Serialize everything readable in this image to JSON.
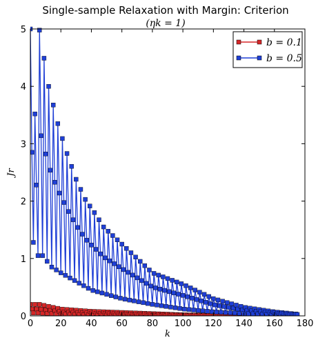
{
  "chart_data": {
    "type": "line",
    "title": "Single-sample Relaxation with Margin: Criterion",
    "subtitle": "(ηk = 1)",
    "xlabel": "k",
    "ylabel": "Jr",
    "xlim": [
      0,
      180
    ],
    "ylim": [
      0,
      5
    ],
    "xticks": [
      0,
      20,
      40,
      60,
      80,
      100,
      120,
      140,
      160,
      180
    ],
    "yticks": [
      0,
      1,
      2,
      3,
      4,
      5
    ],
    "grid": false,
    "legend_position": "top-right",
    "series": [
      {
        "name": "b = 0.1",
        "color": "#d62728",
        "marker": "square",
        "n_points": 176,
        "pattern": "small oscillation with period 3 decaying to 0",
        "peaks": [
          [
            3,
            0.2
          ],
          [
            6,
            0.2
          ],
          [
            20,
            0.12
          ],
          [
            40,
            0.08
          ],
          [
            60,
            0.06
          ],
          [
            80,
            0.04
          ],
          [
            100,
            0.02
          ],
          [
            120,
            0.01
          ],
          [
            175,
            0.0
          ]
        ]
      },
      {
        "name": "b = 0.5",
        "color": "#1f3fd6",
        "marker": "square",
        "n_points": 176,
        "pattern": "oscillation with period 3: peak, trough, mid; decaying toward 0",
        "peaks": [
          [
            0,
            5.0
          ],
          [
            6,
            4.98
          ],
          [
            12,
            4.0
          ],
          [
            18,
            3.35
          ],
          [
            24,
            2.83
          ],
          [
            30,
            2.38
          ],
          [
            36,
            2.03
          ],
          [
            42,
            1.8
          ],
          [
            48,
            1.55
          ],
          [
            54,
            1.4
          ],
          [
            60,
            1.25
          ],
          [
            80,
            0.75
          ],
          [
            100,
            0.55
          ],
          [
            120,
            0.3
          ],
          [
            140,
            0.15
          ],
          [
            160,
            0.07
          ],
          [
            175,
            0.03
          ]
        ],
        "troughs": [
          [
            2,
            1.28
          ],
          [
            8,
            1.05
          ],
          [
            14,
            0.85
          ],
          [
            20,
            0.75
          ],
          [
            30,
            0.6
          ],
          [
            40,
            0.45
          ],
          [
            60,
            0.3
          ],
          [
            80,
            0.2
          ],
          [
            100,
            0.12
          ],
          [
            120,
            0.07
          ],
          [
            140,
            0.04
          ],
          [
            175,
            0.02
          ]
        ]
      }
    ]
  }
}
